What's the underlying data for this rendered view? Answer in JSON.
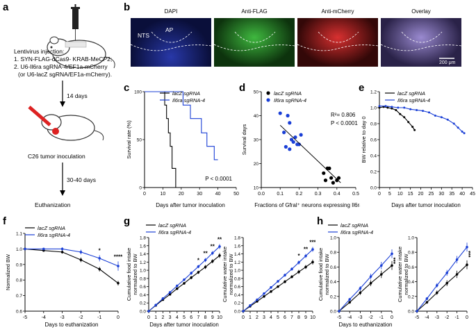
{
  "panels": {
    "a": {
      "letter": "a",
      "injection_title": "Lentivirus injection:",
      "line1": "1. SYN-FLAG-dCas9- KRAB-MeCP2;",
      "line2": "2. U6-Il6ra sgRNA-4/EF1a-mCherry",
      "line3": "(or U6-lacZ sgRNA/EF1a-mCherry).",
      "step1": "14 days",
      "step2": "C26 tumor inoculation",
      "step3": "30-40 days",
      "step4": "Euthanization"
    },
    "b": {
      "letter": "b",
      "titles": [
        "DAPI",
        "Anti-FLAG",
        "Anti-mCherry",
        "Overlay"
      ],
      "label_nts": "NTS",
      "label_ap": "AP",
      "scale": "200 μm",
      "colors": [
        "#1a2a8a",
        "#1f7a1f",
        "#a01818",
        "#6b5a9a"
      ]
    },
    "c": {
      "letter": "c"
    },
    "d": {
      "letter": "d"
    },
    "e": {
      "letter": "e"
    },
    "f": {
      "letter": "f"
    },
    "g": {
      "letter": "g"
    },
    "h": {
      "letter": "h"
    }
  },
  "chart_data": [
    {
      "id": "c",
      "type": "line",
      "ylabel": "Survival rate (%)",
      "xlabel": "Days after tumor inoculation",
      "xlim": [
        0,
        50
      ],
      "ylim": [
        0,
        100
      ],
      "xticks": [
        "0",
        "10",
        "20",
        "30",
        "40",
        "50"
      ],
      "yticks": [
        "0",
        "50",
        "100"
      ],
      "legend": [
        "lacZ sgRNA",
        "Il6ra sgRNA-4"
      ],
      "annotation": "P < 0.0001",
      "series": [
        {
          "name": "lacZ sgRNA",
          "color": "#000000",
          "x": [
            0,
            11,
            11,
            12,
            12,
            13,
            13,
            14,
            14,
            15,
            15,
            17,
            17
          ],
          "y": [
            100,
            100,
            86,
            86,
            72,
            72,
            57,
            57,
            43,
            43,
            20,
            20,
            0
          ]
        },
        {
          "name": "Il6ra sgRNA-4",
          "color": "#1a3fd6",
          "x": [
            0,
            21,
            21,
            25,
            25,
            31,
            31,
            34,
            34,
            38,
            38,
            40
          ],
          "y": [
            100,
            100,
            86,
            86,
            72,
            72,
            57,
            57,
            43,
            43,
            29,
            29
          ]
        }
      ]
    },
    {
      "id": "d",
      "type": "scatter",
      "ylabel": "Survival days",
      "xlabel": "Fractions of Gfral⁺ neurons expressing Il6ra",
      "xlim": [
        0,
        0.5
      ],
      "ylim": [
        10,
        50
      ],
      "xticks": [
        "0.0",
        "0.1",
        "0.2",
        "0.3",
        "0.4",
        "0.5"
      ],
      "yticks": [
        "10",
        "20",
        "30",
        "40",
        "50"
      ],
      "legend": [
        "lacZ sgRNA",
        "Il6ra sgRNA-4"
      ],
      "r2": "R²= 0.806",
      "p": "P < 0.0001",
      "fit": {
        "x": [
          0.1,
          0.42
        ],
        "y": [
          36,
          12
        ]
      },
      "series": [
        {
          "name": "lacZ sgRNA",
          "color": "#000000",
          "x": [
            0.33,
            0.35,
            0.37,
            0.34,
            0.38,
            0.4,
            0.36,
            0.41
          ],
          "y": [
            16,
            18,
            14,
            13,
            12,
            13,
            18,
            14
          ]
        },
        {
          "name": "Il6ra sgRNA-4",
          "color": "#1a3fd6",
          "x": [
            0.1,
            0.12,
            0.14,
            0.15,
            0.16,
            0.18,
            0.19,
            0.2,
            0.13,
            0.17,
            0.15,
            0.21
          ],
          "y": [
            41,
            33,
            40,
            37,
            30,
            31,
            28,
            28,
            27,
            29,
            26,
            32
          ]
        }
      ]
    },
    {
      "id": "e",
      "type": "line",
      "ylabel": "BW relative to day 0",
      "xlabel": "Days after tumor inoculation",
      "xlim": [
        0,
        45
      ],
      "ylim": [
        0,
        1.2
      ],
      "xticks": [
        "0",
        "5",
        "10",
        "15",
        "20",
        "25",
        "30",
        "35",
        "40",
        "45"
      ],
      "yticks": [
        "0.0",
        "0.2",
        "0.4",
        "0.6",
        "0.8",
        "1.0",
        "1.2"
      ],
      "legend": [
        "lacZ sgRNA",
        "Il6ra sgRNA-4"
      ],
      "series": [
        {
          "name": "lacZ sgRNA",
          "color": "#000000",
          "x": [
            0,
            2,
            4,
            6,
            8,
            10,
            12,
            14,
            16,
            17
          ],
          "y": [
            1.0,
            1.01,
            1.0,
            0.99,
            0.97,
            0.92,
            0.88,
            0.82,
            0.76,
            0.72
          ]
        },
        {
          "name": "Il6ra sgRNA-4",
          "color": "#1a3fd6",
          "x": [
            0,
            3,
            6,
            9,
            12,
            15,
            18,
            21,
            24,
            27,
            30,
            33,
            36,
            38,
            40,
            41
          ],
          "y": [
            1.02,
            1.02,
            1.01,
            1.0,
            1.0,
            0.98,
            0.97,
            0.96,
            0.94,
            0.9,
            0.88,
            0.85,
            0.8,
            0.75,
            0.7,
            0.68
          ]
        }
      ]
    },
    {
      "id": "f",
      "type": "line",
      "ylabel": "Normalized BW",
      "xlabel": "Days to euthanization",
      "xlim": [
        -5,
        0
      ],
      "ylim": [
        0.6,
        1.1
      ],
      "xticks": [
        "-5",
        "-4",
        "-3",
        "-2",
        "-1",
        "0"
      ],
      "yticks": [
        "0.6",
        "0.7",
        "0.8",
        "0.9",
        "1.0",
        "1.1"
      ],
      "legend": [
        "lacZ sgRNA",
        "Il6ra sgRNA-4"
      ],
      "stars": [
        {
          "x": -1,
          "label": "*"
        },
        {
          "x": 0,
          "label": "****"
        }
      ],
      "series": [
        {
          "name": "lacZ sgRNA",
          "color": "#000000",
          "x": [
            -5,
            -4,
            -3,
            -2,
            -1,
            0
          ],
          "y": [
            1.0,
            0.99,
            0.98,
            0.93,
            0.87,
            0.78
          ],
          "err": [
            0,
            0.005,
            0.01,
            0.015,
            0.015,
            0.015
          ]
        },
        {
          "name": "Il6ra sgRNA-4",
          "color": "#1a3fd6",
          "x": [
            -5,
            -4,
            -3,
            -2,
            -1,
            0
          ],
          "y": [
            1.0,
            1.0,
            1.0,
            0.98,
            0.94,
            0.89
          ],
          "err": [
            0,
            0.005,
            0.01,
            0.015,
            0.02,
            0.03
          ]
        }
      ]
    },
    {
      "id": "g1",
      "type": "line",
      "ylabel": "Cumulative food intake\nnormalized to BW",
      "xlabel": "Days after tumor inoculation",
      "xlim": [
        0,
        10
      ],
      "ylim": [
        0,
        1.8
      ],
      "xticks": [
        "0",
        "1",
        "2",
        "3",
        "4",
        "5",
        "6",
        "7",
        "8",
        "9",
        "10"
      ],
      "yticks": [
        "0.0",
        "0.2",
        "0.4",
        "0.6",
        "0.8",
        "1.0",
        "1.2",
        "1.4",
        "1.6",
        "1.8"
      ],
      "legend": [
        "lacZ sgRNA",
        "Il6ra sgRNA-4"
      ],
      "stars": [
        {
          "x": 7,
          "label": "*"
        },
        {
          "x": 8,
          "label": "**"
        },
        {
          "x": 9,
          "label": "**"
        },
        {
          "x": 10,
          "label": "**"
        }
      ],
      "series": [
        {
          "name": "lacZ sgRNA",
          "color": "#000000",
          "x": [
            0,
            1,
            2,
            3,
            4,
            5,
            6,
            7,
            8,
            9,
            10
          ],
          "y": [
            0,
            0.14,
            0.28,
            0.41,
            0.55,
            0.68,
            0.82,
            0.95,
            1.08,
            1.22,
            1.36
          ],
          "err": [
            0,
            0.01,
            0.02,
            0.02,
            0.03,
            0.03,
            0.04,
            0.04,
            0.05,
            0.05,
            0.06
          ]
        },
        {
          "name": "Il6ra sgRNA-4",
          "color": "#1a3fd6",
          "x": [
            0,
            1,
            2,
            3,
            4,
            5,
            6,
            7,
            8,
            9,
            10
          ],
          "y": [
            0,
            0.15,
            0.31,
            0.46,
            0.62,
            0.77,
            0.93,
            1.09,
            1.25,
            1.42,
            1.58
          ],
          "err": [
            0,
            0.01,
            0.02,
            0.02,
            0.03,
            0.03,
            0.04,
            0.04,
            0.05,
            0.05,
            0.06
          ]
        }
      ]
    },
    {
      "id": "g2",
      "type": "line",
      "ylabel": "Cumulative water intake\nnormalized to BW",
      "xlabel": "",
      "xlim": [
        0,
        10
      ],
      "ylim": [
        0,
        1.8
      ],
      "xticks": [
        "0",
        "1",
        "2",
        "3",
        "4",
        "5",
        "6",
        "7",
        "8",
        "9",
        "10"
      ],
      "yticks": [
        "0.0",
        "0.2",
        "0.4",
        "0.6",
        "0.8",
        "1.0",
        "1.2",
        "1.4",
        "1.6",
        "1.8"
      ],
      "stars": [
        {
          "x": 8,
          "label": "*"
        },
        {
          "x": 9,
          "label": "**"
        },
        {
          "x": 10,
          "label": "***"
        }
      ],
      "series": [
        {
          "name": "lacZ sgRNA",
          "color": "#000000",
          "x": [
            0,
            1,
            2,
            3,
            4,
            5,
            6,
            7,
            8,
            9,
            10
          ],
          "y": [
            0,
            0.12,
            0.24,
            0.36,
            0.48,
            0.6,
            0.72,
            0.84,
            0.96,
            1.08,
            1.2
          ],
          "err": [
            0,
            0.01,
            0.02,
            0.02,
            0.03,
            0.03,
            0.04,
            0.04,
            0.05,
            0.05,
            0.06
          ]
        },
        {
          "name": "Il6ra sgRNA-4",
          "color": "#1a3fd6",
          "x": [
            0,
            1,
            2,
            3,
            4,
            5,
            6,
            7,
            8,
            9,
            10
          ],
          "y": [
            0,
            0.14,
            0.28,
            0.43,
            0.58,
            0.73,
            0.88,
            1.03,
            1.19,
            1.35,
            1.51
          ],
          "err": [
            0,
            0.01,
            0.02,
            0.02,
            0.03,
            0.03,
            0.04,
            0.04,
            0.05,
            0.05,
            0.06
          ]
        }
      ]
    },
    {
      "id": "h1",
      "type": "line",
      "ylabel": "Cumulative food intake\nnormalized to BW",
      "xlabel": "Days to euthanization",
      "xlim": [
        -5,
        0
      ],
      "ylim": [
        0,
        1.0
      ],
      "xticks": [
        "-5",
        "-4",
        "-3",
        "-2",
        "-1",
        "0"
      ],
      "yticks": [
        "0.0",
        "0.2",
        "0.4",
        "0.6",
        "0.8",
        "1.0"
      ],
      "legend": [
        "lacZ sgRNA",
        "Il6ra sgRNA-4"
      ],
      "side_stars": "***",
      "series": [
        {
          "name": "lacZ sgRNA",
          "color": "#000000",
          "x": [
            -5,
            -4,
            -3,
            -2,
            -1,
            0
          ],
          "y": [
            0,
            0.12,
            0.25,
            0.38,
            0.5,
            0.62
          ],
          "err": [
            0,
            0.02,
            0.03,
            0.04,
            0.05,
            0.06
          ]
        },
        {
          "name": "Il6ra sgRNA-4",
          "color": "#1a3fd6",
          "x": [
            -5,
            -4,
            -3,
            -2,
            -1,
            0
          ],
          "y": [
            0,
            0.16,
            0.31,
            0.47,
            0.62,
            0.78
          ],
          "err": [
            0,
            0.02,
            0.03,
            0.04,
            0.05,
            0.06
          ]
        }
      ]
    },
    {
      "id": "h2",
      "type": "line",
      "ylabel": "Cumulative water intake\nnormalized to BW",
      "xlabel": "",
      "xlim": [
        -5,
        0
      ],
      "ylim": [
        0,
        1.0
      ],
      "xticks": [
        "-5",
        "-4",
        "-3",
        "-2",
        "-1",
        "0"
      ],
      "yticks": [
        "0.0",
        "0.2",
        "0.4",
        "0.6",
        "0.8",
        "1.0"
      ],
      "side_stars": "***",
      "series": [
        {
          "name": "lacZ sgRNA",
          "color": "#000000",
          "x": [
            -5,
            -4,
            -3,
            -2,
            -1,
            0
          ],
          "y": [
            0,
            0.12,
            0.25,
            0.38,
            0.5,
            0.63
          ],
          "err": [
            0,
            0.02,
            0.03,
            0.04,
            0.05,
            0.06
          ]
        },
        {
          "name": "Il6ra sgRNA-4",
          "color": "#1a3fd6",
          "x": [
            -5,
            -4,
            -3,
            -2,
            -1,
            0
          ],
          "y": [
            0,
            0.17,
            0.35,
            0.52,
            0.7,
            0.87
          ],
          "err": [
            0,
            0.02,
            0.03,
            0.04,
            0.05,
            0.06
          ]
        }
      ]
    }
  ]
}
